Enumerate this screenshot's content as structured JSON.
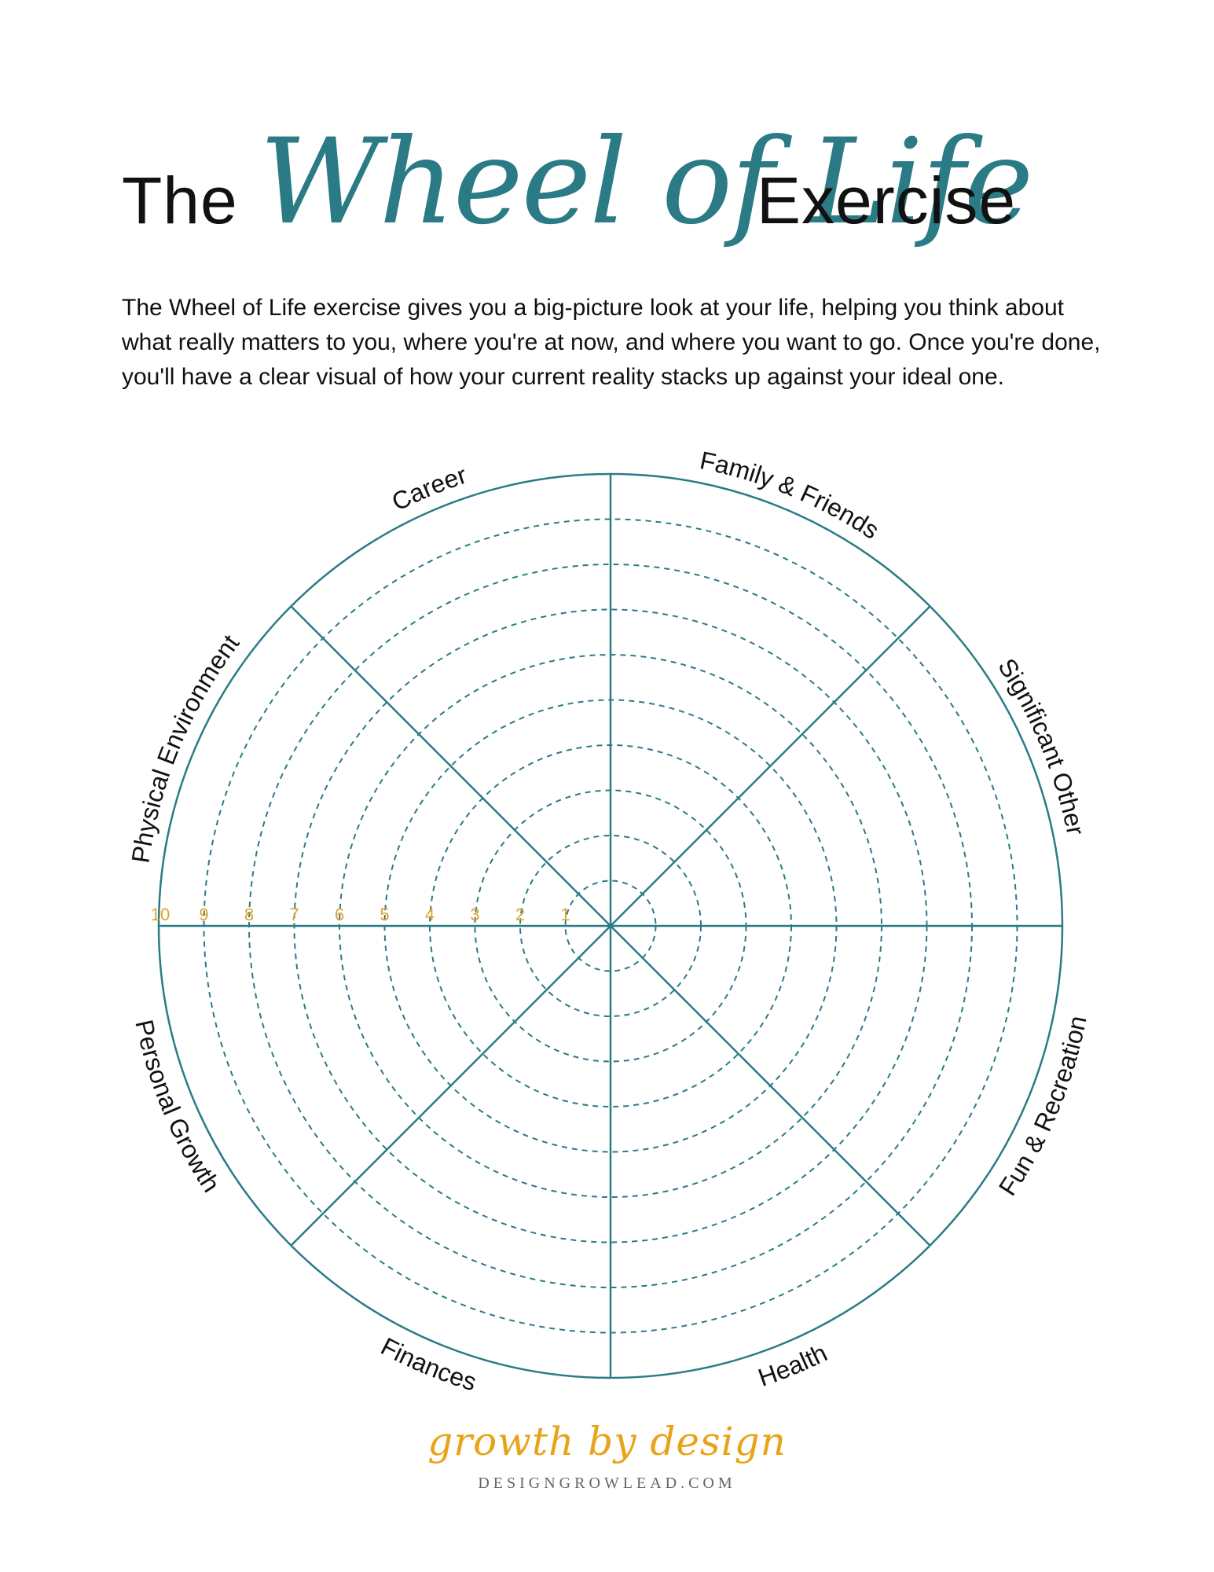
{
  "title": {
    "before": "The",
    "script": "Wheel of Life",
    "after": "Exercise"
  },
  "intro": "The Wheel of Life exercise gives you a big-picture look at your life, helping you think about what really matters to you, where you're at now, and where you want to go. Once you're done, you'll have a clear visual of how your current reality stacks up against your ideal one.",
  "wheel": {
    "segments": [
      "Family & Friends",
      "Significant Other",
      "Fun & Recreation",
      "Health",
      "Finances",
      "Personal Growth",
      "Physical Environment",
      "Career"
    ],
    "scale": [
      "1",
      "2",
      "3",
      "4",
      "5",
      "6",
      "7",
      "8",
      "9",
      "10"
    ],
    "colors": {
      "lines": "#2a7b85",
      "scale": "#e0a32a"
    }
  },
  "logo": {
    "script": "growth by design",
    "url": "DESIGNGROWLEAD.COM"
  }
}
